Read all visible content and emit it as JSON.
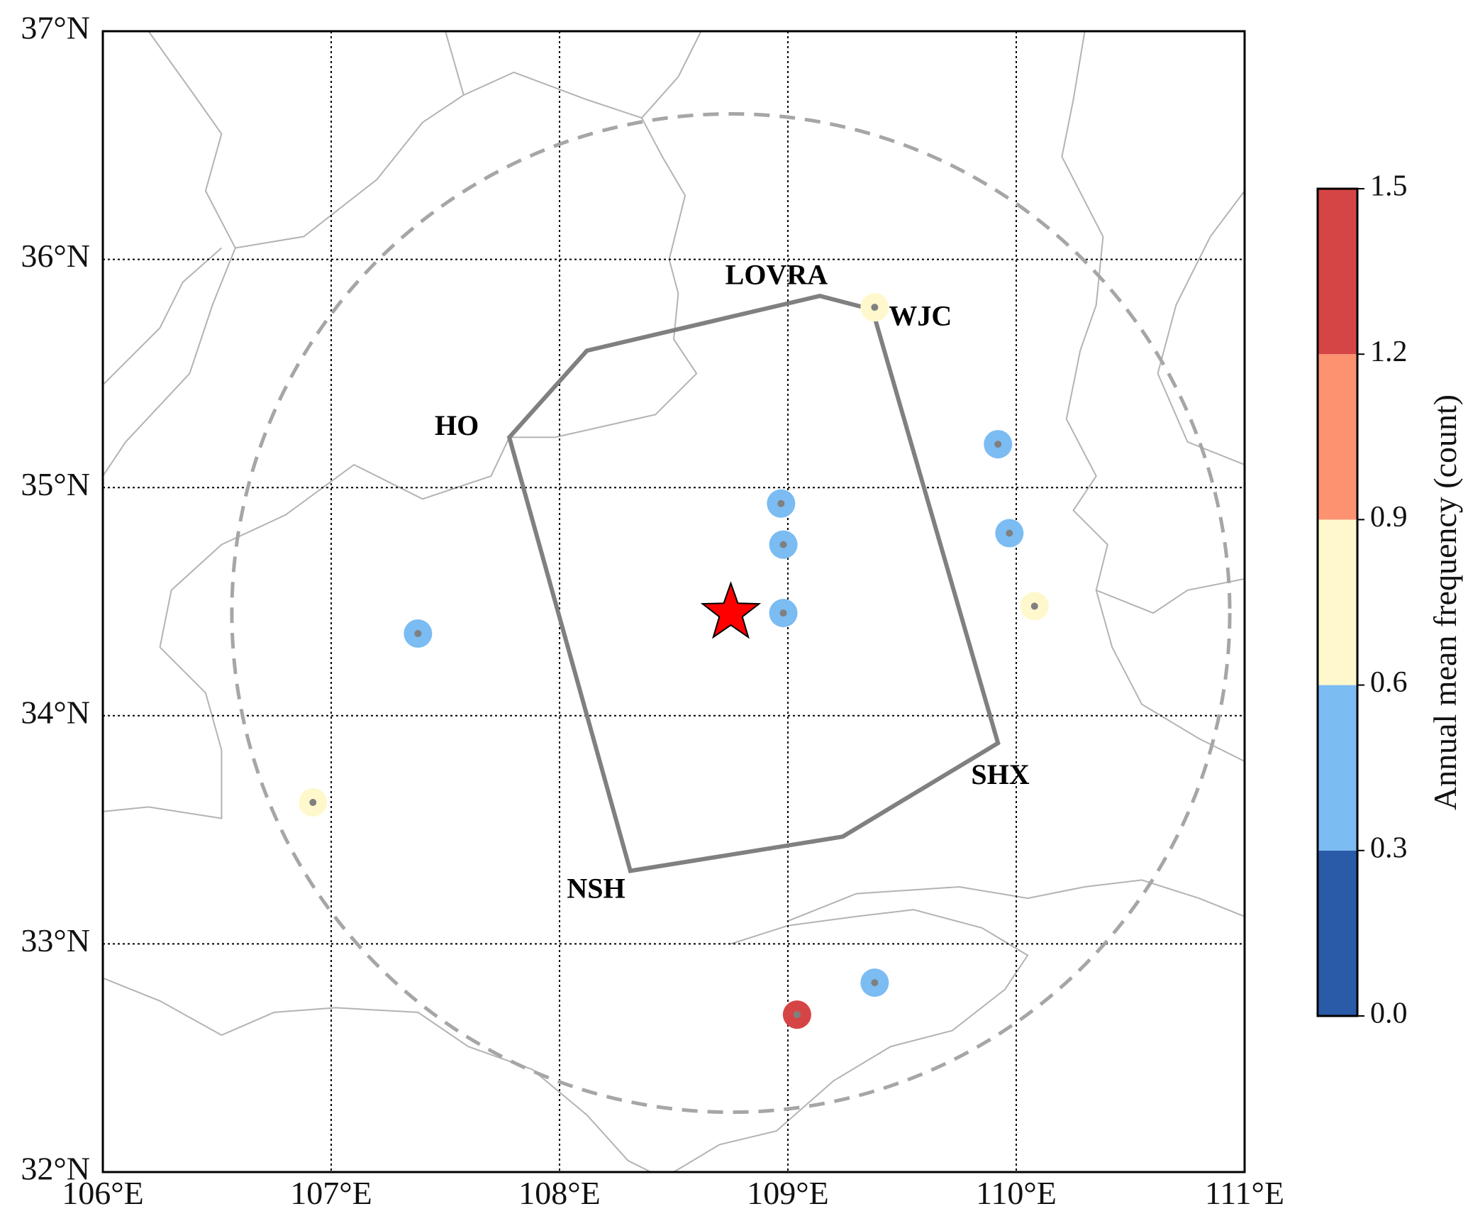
{
  "map": {
    "extent": {
      "lon": [
        106,
        111
      ],
      "lat": [
        32,
        37
      ]
    },
    "lat_ticks": [
      {
        "value": 37,
        "label": "37°N"
      },
      {
        "value": 36,
        "label": "36°N"
      },
      {
        "value": 35,
        "label": "35°N"
      },
      {
        "value": 34,
        "label": "34°N"
      },
      {
        "value": 33,
        "label": "33°N"
      },
      {
        "value": 32,
        "label": "32°N"
      }
    ],
    "lon_ticks": [
      {
        "value": 106,
        "label": "106°E"
      },
      {
        "value": 107,
        "label": "107°E"
      },
      {
        "value": 108,
        "label": "108°E"
      },
      {
        "value": 109,
        "label": "109°E"
      },
      {
        "value": 110,
        "label": "110°E"
      },
      {
        "value": 111,
        "label": "111°E"
      }
    ],
    "grid": true,
    "radar_center": {
      "lon": 108.75,
      "lat": 34.45,
      "marker": "star-icon",
      "color": "#ff0000"
    },
    "range_circle": {
      "center_lon": 108.75,
      "center_lat": 34.45,
      "style": "dashed",
      "color": "#a6a6a6"
    },
    "polygon": {
      "color": "#808080",
      "vertices": [
        {
          "lon": 108.12,
          "lat": 35.6
        },
        {
          "lon": 109.14,
          "lat": 35.84
        },
        {
          "lon": 109.37,
          "lat": 35.78
        },
        {
          "lon": 109.92,
          "lat": 33.88
        },
        {
          "lon": 109.24,
          "lat": 33.47
        },
        {
          "lon": 108.31,
          "lat": 33.32
        },
        {
          "lon": 107.78,
          "lat": 35.22
        }
      ]
    },
    "site_labels": [
      {
        "text": "LOVRA",
        "lon": 108.95,
        "lat": 35.92
      },
      {
        "text": "WJC",
        "lon": 109.58,
        "lat": 35.74
      },
      {
        "text": "HO",
        "lon": 107.55,
        "lat": 35.26
      },
      {
        "text": "SHX",
        "lon": 109.93,
        "lat": 33.73
      },
      {
        "text": "NSH",
        "lon": 108.16,
        "lat": 33.23
      }
    ],
    "stations": [
      {
        "lon": 109.38,
        "lat": 35.79,
        "frequency": 0.75
      },
      {
        "lon": 109.92,
        "lat": 35.19,
        "frequency": 0.45
      },
      {
        "lon": 108.97,
        "lat": 34.93,
        "frequency": 0.45
      },
      {
        "lon": 108.98,
        "lat": 34.75,
        "frequency": 0.45
      },
      {
        "lon": 109.97,
        "lat": 34.8,
        "frequency": 0.45
      },
      {
        "lon": 110.08,
        "lat": 34.48,
        "frequency": 0.75
      },
      {
        "lon": 108.98,
        "lat": 34.45,
        "frequency": 0.45
      },
      {
        "lon": 107.38,
        "lat": 34.36,
        "frequency": 0.45
      },
      {
        "lon": 106.92,
        "lat": 33.62,
        "frequency": 0.75
      },
      {
        "lon": 109.38,
        "lat": 32.83,
        "frequency": 0.45
      },
      {
        "lon": 109.04,
        "lat": 32.69,
        "frequency": 1.35
      }
    ],
    "boundaries": [
      [
        [
          106.2,
          37.0
        ],
        [
          106.4,
          36.72
        ],
        [
          106.52,
          36.55
        ],
        [
          106.45,
          36.3
        ],
        [
          106.58,
          36.05
        ],
        [
          106.48,
          35.8
        ],
        [
          106.38,
          35.5
        ],
        [
          106.1,
          35.2
        ],
        [
          106.0,
          35.05
        ]
      ],
      [
        [
          106.0,
          35.45
        ],
        [
          106.25,
          35.7
        ],
        [
          106.35,
          35.9
        ],
        [
          106.52,
          36.05
        ]
      ],
      [
        [
          106.58,
          36.05
        ],
        [
          106.88,
          36.1
        ],
        [
          107.2,
          36.35
        ],
        [
          107.4,
          36.6
        ],
        [
          107.58,
          36.72
        ],
        [
          107.5,
          37.0
        ]
      ],
      [
        [
          107.58,
          36.72
        ],
        [
          107.8,
          36.82
        ],
        [
          108.12,
          36.7
        ],
        [
          108.36,
          36.62
        ],
        [
          108.52,
          36.8
        ],
        [
          108.62,
          37.0
        ]
      ],
      [
        [
          108.36,
          36.62
        ],
        [
          108.45,
          36.45
        ],
        [
          108.55,
          36.28
        ],
        [
          108.48,
          36.0
        ],
        [
          108.52,
          35.85
        ],
        [
          108.5,
          35.65
        ],
        [
          108.6,
          35.5
        ],
        [
          108.42,
          35.32
        ],
        [
          108.2,
          35.27
        ],
        [
          107.98,
          35.22
        ],
        [
          107.78,
          35.22
        ],
        [
          107.7,
          35.05
        ],
        [
          107.4,
          34.95
        ],
        [
          107.1,
          35.1
        ],
        [
          106.8,
          34.88
        ],
        [
          106.52,
          34.75
        ],
        [
          106.3,
          34.55
        ],
        [
          106.25,
          34.3
        ]
      ],
      [
        [
          106.25,
          34.3
        ],
        [
          106.45,
          34.1
        ],
        [
          106.52,
          33.85
        ],
        [
          106.52,
          33.55
        ],
        [
          106.2,
          33.6
        ],
        [
          106.0,
          33.58
        ]
      ],
      [
        [
          106.0,
          32.85
        ],
        [
          106.25,
          32.75
        ],
        [
          106.52,
          32.6
        ],
        [
          106.75,
          32.7
        ],
        [
          107.02,
          32.72
        ],
        [
          107.38,
          32.7
        ],
        [
          107.6,
          32.55
        ],
        [
          107.88,
          32.45
        ],
        [
          108.12,
          32.25
        ],
        [
          108.3,
          32.05
        ],
        [
          108.4,
          32.0
        ]
      ],
      [
        [
          108.5,
          32.0
        ],
        [
          108.7,
          32.12
        ],
        [
          108.95,
          32.18
        ],
        [
          109.2,
          32.4
        ],
        [
          109.45,
          32.55
        ],
        [
          109.72,
          32.62
        ],
        [
          109.95,
          32.8
        ],
        [
          110.05,
          32.95
        ],
        [
          109.85,
          33.07
        ],
        [
          109.55,
          33.15
        ],
        [
          109.3,
          33.12
        ],
        [
          109.0,
          33.08
        ],
        [
          108.75,
          33.0
        ]
      ],
      [
        [
          109.0,
          33.1
        ],
        [
          109.3,
          33.22
        ],
        [
          109.75,
          33.25
        ],
        [
          110.05,
          33.2
        ],
        [
          110.3,
          33.25
        ],
        [
          110.55,
          33.28
        ],
        [
          110.8,
          33.2
        ],
        [
          111.0,
          33.12
        ]
      ],
      [
        [
          110.3,
          37.0
        ],
        [
          110.25,
          36.7
        ],
        [
          110.2,
          36.45
        ],
        [
          110.38,
          36.1
        ],
        [
          110.35,
          35.8
        ],
        [
          110.28,
          35.6
        ],
        [
          110.22,
          35.3
        ],
        [
          110.35,
          35.05
        ],
        [
          110.25,
          34.9
        ],
        [
          110.4,
          34.75
        ],
        [
          110.35,
          34.55
        ],
        [
          110.6,
          34.45
        ],
        [
          110.75,
          34.55
        ],
        [
          111.0,
          34.6
        ]
      ],
      [
        [
          111.0,
          36.3
        ],
        [
          110.85,
          36.1
        ],
        [
          110.7,
          35.8
        ],
        [
          110.62,
          35.5
        ],
        [
          110.75,
          35.2
        ],
        [
          111.0,
          35.1
        ]
      ],
      [
        [
          110.35,
          34.55
        ],
        [
          110.42,
          34.3
        ],
        [
          110.55,
          34.05
        ],
        [
          110.8,
          33.9
        ],
        [
          111.0,
          33.8
        ]
      ]
    ]
  },
  "colorbar": {
    "title": "Annual mean frequency (count)",
    "bins": [
      {
        "min": 0.0,
        "max": 0.3,
        "color": "#2a5ba8"
      },
      {
        "min": 0.3,
        "max": 0.6,
        "color": "#7bbcf2"
      },
      {
        "min": 0.6,
        "max": 0.9,
        "color": "#fef8cc"
      },
      {
        "min": 0.9,
        "max": 1.2,
        "color": "#fc9270"
      },
      {
        "min": 1.2,
        "max": 1.5,
        "color": "#d64545"
      }
    ],
    "tick_labels": [
      "0.0",
      "0.3",
      "0.6",
      "0.9",
      "1.2",
      "1.5"
    ]
  }
}
